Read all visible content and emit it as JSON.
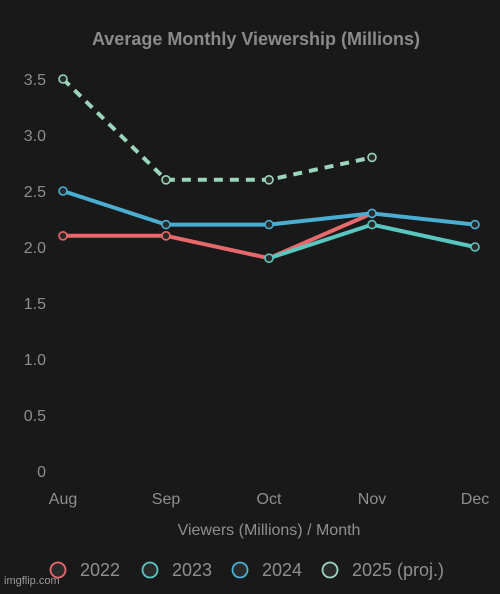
{
  "colors": {
    "background": "#1a1a1a",
    "text": "#8f8f8f",
    "title": "#8a8a8a",
    "grid": "#2a2a2a"
  },
  "watermark": "imgflip.com",
  "chart_data": {
    "type": "line",
    "title": "Average Monthly Viewership (Millions)",
    "xlabel": "Viewers (Millions) / Month",
    "ylabel": "",
    "categories": [
      "Aug",
      "Sep",
      "Oct",
      "Nov",
      "Dec"
    ],
    "ylim": [
      0,
      3.5
    ],
    "yticks": [
      "0",
      "0.5",
      "1.0",
      "1.5",
      "2.0",
      "2.5",
      "3.0",
      "3.5"
    ],
    "grid": false,
    "legend_position": "bottom",
    "series": [
      {
        "name": "2022",
        "values": [
          2.1,
          2.1,
          1.9,
          2.3,
          null
        ],
        "color": "#e8696b",
        "dash": false
      },
      {
        "name": "2023",
        "values": [
          null,
          null,
          1.9,
          2.2,
          2.0
        ],
        "color": "#59c6c0",
        "dash": false
      },
      {
        "name": "2024",
        "values": [
          2.5,
          2.2,
          2.2,
          2.3,
          2.2
        ],
        "color": "#4aaed2",
        "dash": false
      },
      {
        "name": "2025 (proj.)",
        "values": [
          3.5,
          2.6,
          2.6,
          2.8,
          null
        ],
        "color": "#9bd6bc",
        "dash": true
      }
    ]
  }
}
